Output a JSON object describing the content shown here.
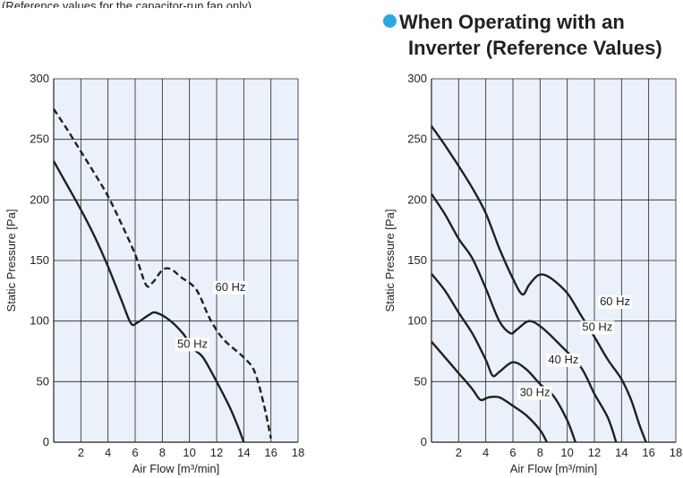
{
  "top_note": "(Reference values for the capacitor-run fan only)",
  "heading": {
    "line1": "When Operating with an",
    "line2": "Inverter (Reference Values)",
    "bullet_color": "#29a8e0"
  },
  "colors": {
    "plot_bg": "#eaf1fa",
    "grid": "#231f20",
    "curve": "#231f20"
  },
  "chart_data": [
    {
      "type": "line",
      "xlabel": "Air Flow [m³/min]",
      "ylabel": "Static Pressure [Pa]",
      "xlim": [
        0,
        18
      ],
      "ylim": [
        0,
        300
      ],
      "x_ticks": [
        2,
        4,
        6,
        8,
        10,
        12,
        14,
        16,
        18
      ],
      "y_ticks": [
        0,
        50,
        100,
        150,
        200,
        250,
        300
      ],
      "grid": true,
      "series": [
        {
          "name": "60 Hz",
          "dashed": true,
          "points": [
            [
              0,
              275
            ],
            [
              1,
              258
            ],
            [
              2,
              240
            ],
            [
              3,
              222
            ],
            [
              4,
              203
            ],
            [
              5,
              180
            ],
            [
              6,
              155
            ],
            [
              6.8,
              130
            ],
            [
              7.3,
              132
            ],
            [
              8,
              142
            ],
            [
              8.6,
              143
            ],
            [
              9.4,
              136
            ],
            [
              10.5,
              126
            ],
            [
              11.5,
              102
            ],
            [
              12.5,
              85
            ],
            [
              14,
              70
            ],
            [
              14.8,
              58
            ],
            [
              15.5,
              30
            ],
            [
              16,
              3
            ]
          ],
          "label_at": [
            11.9,
            125
          ]
        },
        {
          "name": "50 Hz",
          "dashed": false,
          "points": [
            [
              0,
              232
            ],
            [
              1,
              212
            ],
            [
              2,
              192
            ],
            [
              3,
              170
            ],
            [
              4,
              145
            ],
            [
              5,
              117
            ],
            [
              5.7,
              98
            ],
            [
              6.2,
              99
            ],
            [
              7,
              105
            ],
            [
              7.5,
              107
            ],
            [
              8.5,
              101
            ],
            [
              9.5,
              90
            ],
            [
              10.3,
              77
            ],
            [
              11,
              70
            ],
            [
              12,
              50
            ],
            [
              13,
              28
            ],
            [
              13.6,
              12
            ],
            [
              14,
              0
            ]
          ],
          "label_at": [
            9.1,
            78
          ]
        }
      ]
    },
    {
      "type": "line",
      "xlabel": "Air Flow [m³/min]",
      "ylabel": "Static Pressure [Pa]",
      "xlim": [
        0,
        18
      ],
      "ylim": [
        0,
        300
      ],
      "x_ticks": [
        2,
        4,
        6,
        8,
        10,
        12,
        14,
        16,
        18
      ],
      "y_ticks": [
        0,
        50,
        100,
        150,
        200,
        250,
        300
      ],
      "grid": true,
      "series": [
        {
          "name": "60 Hz",
          "dashed": false,
          "points": [
            [
              0,
              261
            ],
            [
              1,
              245
            ],
            [
              2,
              228
            ],
            [
              3,
              210
            ],
            [
              4,
              189
            ],
            [
              5,
              160
            ],
            [
              6,
              135
            ],
            [
              6.7,
              122
            ],
            [
              7.2,
              130
            ],
            [
              7.9,
              138
            ],
            [
              8.7,
              136
            ],
            [
              10,
              123
            ],
            [
              11,
              105
            ],
            [
              12,
              87
            ],
            [
              13,
              68
            ],
            [
              14,
              52
            ],
            [
              14.7,
              35
            ],
            [
              15.3,
              15
            ],
            [
              15.8,
              0
            ]
          ],
          "label_at": [
            12.4,
            113
          ]
        },
        {
          "name": "50 Hz",
          "dashed": false,
          "points": [
            [
              0,
              205
            ],
            [
              1,
              188
            ],
            [
              2,
              168
            ],
            [
              3,
              152
            ],
            [
              4,
              127
            ],
            [
              5,
              100
            ],
            [
              5.8,
              90
            ],
            [
              6.3,
              93
            ],
            [
              7.2,
              100
            ],
            [
              8.2,
              94
            ],
            [
              9.5,
              80
            ],
            [
              11,
              62
            ],
            [
              12,
              40
            ],
            [
              13,
              20
            ],
            [
              13.6,
              0
            ]
          ],
          "label_at": [
            11.1,
            92
          ]
        },
        {
          "name": "40 Hz",
          "dashed": false,
          "points": [
            [
              0,
              139
            ],
            [
              1,
              125
            ],
            [
              2,
              107
            ],
            [
              3,
              90
            ],
            [
              4,
              68
            ],
            [
              4.5,
              55
            ],
            [
              5,
              58
            ],
            [
              6,
              66
            ],
            [
              7,
              60
            ],
            [
              8,
              48
            ],
            [
              9,
              38
            ],
            [
              10,
              18
            ],
            [
              10.6,
              0
            ]
          ],
          "label_at": [
            8.6,
            65
          ]
        },
        {
          "name": "30 Hz",
          "dashed": false,
          "points": [
            [
              0,
              83
            ],
            [
              1,
              70
            ],
            [
              2,
              57
            ],
            [
              3,
              44
            ],
            [
              3.6,
              35
            ],
            [
              4.2,
              37
            ],
            [
              5,
              37
            ],
            [
              6,
              30
            ],
            [
              7,
              22
            ],
            [
              8,
              10
            ],
            [
              8.5,
              0
            ]
          ],
          "label_at": [
            6.5,
            38
          ]
        }
      ]
    }
  ]
}
